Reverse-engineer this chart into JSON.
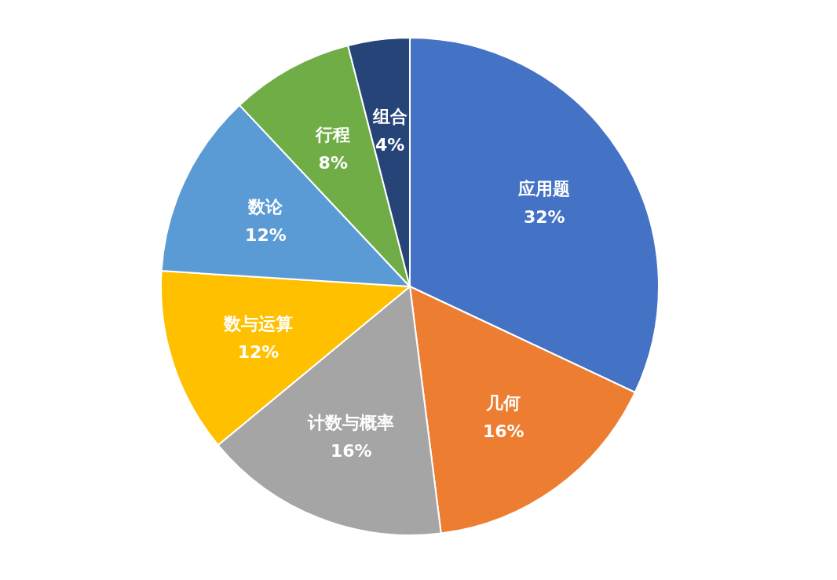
{
  "chart_data": {
    "type": "pie",
    "categories": [
      "应用题",
      "几何",
      "计数与概率",
      "数与运算",
      "数论",
      "行程",
      "组合"
    ],
    "values": [
      32,
      16,
      16,
      12,
      12,
      8,
      4
    ],
    "colors": [
      "#4472c4",
      "#ed7d31",
      "#a5a5a5",
      "#ffc000",
      "#5b9bd5",
      "#70ad47",
      "#264478"
    ],
    "value_labels": [
      "32%",
      "16%",
      "16%",
      "12%",
      "12%",
      "8%",
      "4%"
    ],
    "legend": false
  }
}
